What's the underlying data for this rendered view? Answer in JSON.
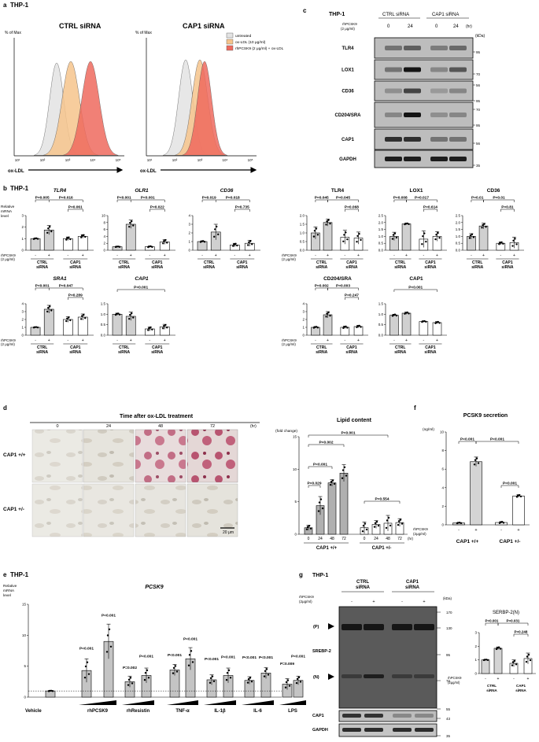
{
  "panels": {
    "a": {
      "letter": "a",
      "cell": "THP-1",
      "plot1_title": "CTRL siRNA",
      "plot2_title": "CAP1 siRNA",
      "yaxis": "% of Max",
      "xaxis": "ox-LDL",
      "ticks": [
        "10¹",
        "10²",
        "10³",
        "10⁴",
        "10⁵"
      ],
      "legend": [
        "untreated",
        "ox-LDL (10 μg/ml)",
        "rhPCSK9 (2 μg/ml) + ox-LDL"
      ],
      "colors": [
        "#e3e3e3",
        "#f6c48c",
        "#ee6a5e"
      ]
    },
    "b": {
      "letter": "b",
      "cell": "THP-1",
      "ylabel_lines": [
        "Relative",
        "mRNA",
        "level"
      ],
      "rh_lines": [
        "rhPCSK9",
        "(2 μg/ml)"
      ],
      "group1": [
        "CTRL",
        "siRNA"
      ],
      "group2": [
        "CAP1",
        "siRNA"
      ],
      "charts": [
        {
          "title": "TLR4",
          "italic": true,
          "yticks": [
            "0",
            "1",
            "2",
            "3"
          ],
          "ymax": 3,
          "bars": [
            1,
            1.75,
            1,
            1.2
          ],
          "err": [
            0.05,
            0.4,
            0.15,
            0.15
          ],
          "p": [
            "P=0.005",
            "P=0.016",
            "P=0.061"
          ]
        },
        {
          "title": "OLR1",
          "italic": true,
          "yticks": [
            "0",
            "2",
            "4",
            "6",
            "8",
            "10"
          ],
          "ymax": 10,
          "bars": [
            1,
            7.5,
            1,
            2.4
          ],
          "err": [
            0.1,
            1.2,
            0.2,
            0.7
          ],
          "p": [
            "P<0.001",
            "P<0.001",
            "P=0.022"
          ]
        },
        {
          "title": "CD36",
          "italic": true,
          "yticks": [
            "0",
            "1",
            "2",
            "3",
            "4"
          ],
          "ymax": 4,
          "bars": [
            1,
            2.1,
            0.6,
            0.8
          ],
          "err": [
            0.08,
            0.9,
            0.2,
            0.35
          ],
          "p": [
            "P=0.019",
            "P=0.018",
            "P=0.735"
          ]
        },
        {
          "title": "TLR4",
          "italic": false,
          "yticks": [
            "0.0",
            "0.5",
            "1.0",
            "1.5",
            "2.0"
          ],
          "ymax": 2,
          "bars": [
            1,
            1.6,
            0.75,
            0.7
          ],
          "err": [
            0.35,
            0.2,
            0.4,
            0.35
          ],
          "p": [
            "P=0.045",
            "P=0.045",
            "P=0.068"
          ]
        },
        {
          "title": "LOX1",
          "italic": false,
          "yticks": [
            "0.0",
            "0.5",
            "1.0",
            "1.5",
            "2.0",
            "2.5"
          ],
          "ymax": 2.5,
          "bars": [
            1,
            1.9,
            0.8,
            1
          ],
          "err": [
            0.3,
            0.05,
            0.6,
            0.35
          ],
          "p": [
            "P=0.008",
            "P=0.017",
            "P=0.614"
          ]
        },
        {
          "title": "CD36",
          "italic": false,
          "yticks": [
            "0.0",
            "0.5",
            "1.0",
            "1.5",
            "2.0",
            "2.5"
          ],
          "ymax": 2.5,
          "bars": [
            1,
            1.75,
            0.5,
            0.55
          ],
          "err": [
            0.2,
            0.2,
            0.1,
            0.4
          ],
          "p": [
            "P=0.01",
            "P=0.01",
            "P=0.81"
          ]
        },
        {
          "title": "SRA1",
          "italic": true,
          "yticks": [
            "0",
            "1",
            "2",
            "3",
            "4"
          ],
          "ymax": 4,
          "bars": [
            1,
            3.3,
            2,
            2.3
          ],
          "err": [
            0.05,
            0.5,
            0.35,
            0.4
          ],
          "p": [
            "P<0.001",
            "P=0.047",
            "P=0.289"
          ]
        },
        {
          "title": "CAP1",
          "italic": true,
          "yticks": [
            "0.0",
            "0.5",
            "1.0",
            "1.5"
          ],
          "ymax": 1.5,
          "bars": [
            1,
            0.9,
            0.3,
            0.4
          ],
          "err": [
            0.05,
            0.2,
            0.1,
            0.12
          ],
          "p": [
            "P<0.001"
          ]
        },
        {
          "title": "CD204/SRA",
          "italic": false,
          "yticks": [
            "0",
            "1",
            "2",
            "3",
            "4"
          ],
          "ymax": 4,
          "bars": [
            1,
            2.6,
            1,
            1.1
          ],
          "err": [
            0.1,
            0.4,
            0.15,
            0.15
          ],
          "p": [
            "P=0.002",
            "P=0.003",
            "P=0.247"
          ]
        },
        {
          "title": "CAP1",
          "italic": false,
          "yticks": [
            "0.0",
            "0.5",
            "1.0",
            "1.5"
          ],
          "ymax": 1.5,
          "bars": [
            0.95,
            1.05,
            0.65,
            0.6
          ],
          "err": [
            0.05,
            0.05,
            0.03,
            0.05
          ],
          "p": [
            "P<0.001"
          ]
        }
      ]
    },
    "c": {
      "letter": "c",
      "cell": "THP-1",
      "groups": [
        "CTRL siRNA",
        "CAP1 siRNA"
      ],
      "rh_lines": [
        "rhPCSK9",
        "(2 μg/ml)"
      ],
      "times": [
        "0",
        "24",
        "0",
        "24"
      ],
      "hr": "(hr)",
      "kda": "(kDa)",
      "bands": [
        "TLR4",
        "LOX1",
        "CD36",
        "CD204/SRA",
        "CAP1",
        "GAPDH"
      ],
      "markers": [
        "95",
        "70",
        "56",
        "95",
        "95",
        "70",
        "56",
        "35"
      ]
    },
    "d": {
      "letter": "d",
      "title": "Time after ox-LDL treatment",
      "times": [
        "0",
        "24",
        "48",
        "72"
      ],
      "hr": "(hr)",
      "rows": [
        "CAP1 +/+",
        "CAP1 +/-"
      ],
      "scale": "20 μm",
      "chart_title": "Lipid content",
      "fold": "(fold change)",
      "chart_data": {
        "type": "bar",
        "categories": [
          "0",
          "24",
          "48",
          "72",
          "0",
          "24",
          "48",
          "72"
        ],
        "values": [
          1,
          4.4,
          7.9,
          9.4,
          1,
          1.5,
          1.7,
          1.8
        ],
        "ylim": [
          0,
          15
        ],
        "groups": [
          "CAP1 +/+",
          "CAP1 +/-"
        ]
      },
      "yticks": [
        "0",
        "5",
        "10",
        "15"
      ],
      "p": [
        "P<0.001",
        "P=0.002",
        "P<0.001",
        "P=0.029",
        "P=0.554"
      ]
    },
    "e": {
      "letter": "e",
      "cell": "THP-1",
      "title": "PCSK9",
      "ylabel_lines": [
        "Relative",
        "mRNA",
        "level"
      ],
      "yticks": [
        "0",
        "5",
        "10",
        "15"
      ],
      "xlabels": [
        "Vehicle",
        "rhPCSK9",
        "rhResistin",
        "TNF-α",
        "IL-1β",
        "IL-6",
        "LPS"
      ],
      "chart_data": {
        "type": "bar",
        "values": [
          1,
          4.3,
          9,
          2.5,
          3.5,
          4.4,
          6.2,
          2.8,
          3.5,
          2.7,
          3.9,
          2.1,
          2.7
        ],
        "ylim": [
          0,
          15
        ]
      },
      "p": [
        "P<0.001",
        "P<0.001",
        "P=0.002",
        "P<0.001",
        "P<0.001",
        "P<0.001",
        "P<0.001",
        "P<0.001",
        "P<0.001",
        "P<0.001",
        "P=0.009",
        "P<0.001"
      ]
    },
    "f": {
      "letter": "f",
      "title": "PCSK9 secretion",
      "unit": "(ng/ml)",
      "yticks": [
        "0",
        "2",
        "4",
        "6",
        "8",
        "10"
      ],
      "rh_lines": [
        "rhPCSK9",
        "(2μg/ml)"
      ],
      "groups": [
        "CAP1 +/+",
        "CAP1 +/-"
      ],
      "chart_data": {
        "type": "bar",
        "values": [
          0.2,
          6.8,
          0.25,
          3.1
        ],
        "ylim": [
          0,
          10
        ]
      },
      "p": [
        "P<0.001",
        "P<0.001",
        "P<0.001"
      ]
    },
    "g": {
      "letter": "g",
      "cell": "THP-1",
      "groups": [
        "CTRL siRNA",
        "CAP1 siRNA"
      ],
      "rh_lines": [
        "rhPCSK9",
        "(2μg/ml)"
      ],
      "kda": "(kDa)",
      "labels": [
        "(P)",
        "SREBP-2",
        "(N)",
        "CAP1",
        "GAPDH"
      ],
      "markers": [
        "170",
        "130",
        "95",
        "72",
        "55",
        "43",
        "35"
      ],
      "chart_title": "SERBP-2(N)",
      "yticks": [
        "0",
        "1",
        "2",
        "3"
      ],
      "chart_data": {
        "type": "bar",
        "values": [
          1,
          1.85,
          0.75,
          1.1
        ],
        "ylim": [
          0,
          3
        ]
      },
      "p": [
        "P<0.001",
        "P=0.031",
        "P=0.248"
      ]
    }
  },
  "signs": [
    "-",
    "+"
  ]
}
